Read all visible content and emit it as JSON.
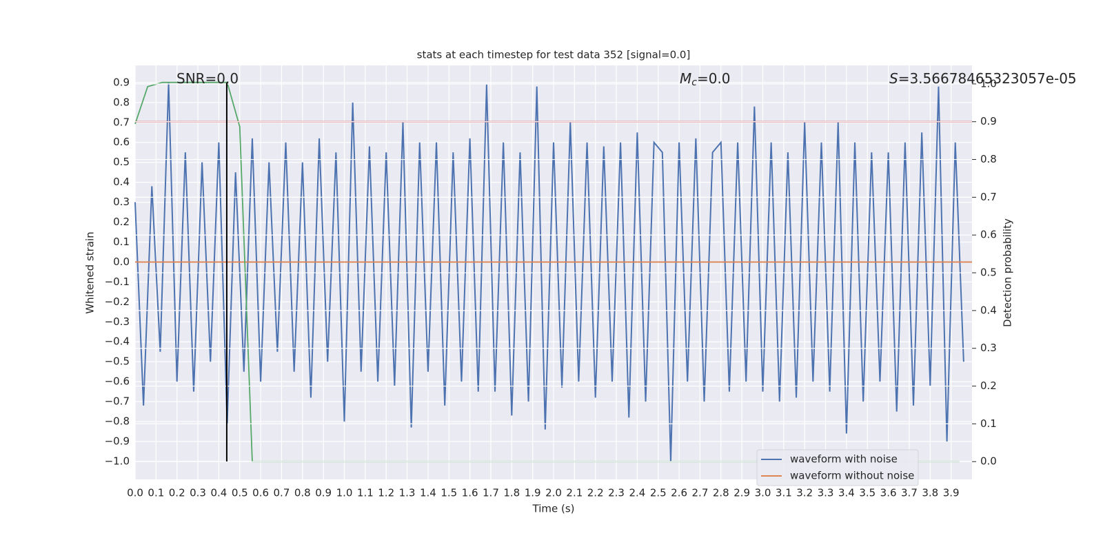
{
  "chart_data": {
    "type": "line",
    "title": "stats at each timestep for test data 352 [signal=0.0]",
    "x_label": "Time (s)",
    "y_label": "Whitened strain",
    "y2_label": "Detection probability",
    "xlim": [
      0,
      4.0
    ],
    "ylim": [
      -1.09,
      0.986
    ],
    "y2lim": [
      -0.047,
      1.049
    ],
    "grid": true,
    "legend": "lower right",
    "xticks": [
      {
        "value": 0,
        "label": "0.0"
      },
      0.1,
      0.2,
      0.3,
      0.4,
      0.5,
      0.6,
      0.7,
      0.8,
      0.9,
      {
        "value": 1,
        "label": "1.0"
      },
      1.1,
      1.2,
      1.3,
      1.4,
      1.5,
      1.6,
      1.7,
      1.8,
      1.9,
      {
        "value": 2,
        "label": "2.0"
      },
      2.1,
      2.2,
      2.3,
      2.4,
      2.5,
      2.6,
      2.7,
      2.8,
      2.9,
      {
        "value": 3,
        "label": "3.0"
      },
      3.1,
      3.2,
      3.3,
      3.4,
      3.5,
      3.6,
      3.7,
      3.8,
      3.9
    ],
    "yticks": [
      {
        "value": -1,
        "label": "−1.0"
      },
      {
        "value": -0.9,
        "label": "−0.9"
      },
      {
        "value": -0.8,
        "label": "−0.8"
      },
      {
        "value": -0.7,
        "label": "−0.7"
      },
      {
        "value": -0.6,
        "label": "−0.6"
      },
      {
        "value": -0.5,
        "label": "−0.5"
      },
      {
        "value": -0.4,
        "label": "−0.4"
      },
      {
        "value": -0.3,
        "label": "−0.3"
      },
      {
        "value": -0.2,
        "label": "−0.2"
      },
      {
        "value": -0.1,
        "label": "−0.1"
      },
      {
        "value": 0,
        "label": "0.0"
      },
      0.1,
      0.2,
      0.3,
      0.4,
      0.5,
      0.6,
      0.7,
      0.8,
      0.9
    ],
    "y2ticks": [
      {
        "value": 0,
        "label": "0.0"
      },
      0.1,
      0.2,
      0.3,
      0.4,
      0.5,
      0.6,
      0.7,
      0.8,
      0.9,
      {
        "value": 1,
        "label": "1.0"
      }
    ],
    "series": [
      {
        "name": "waveform with noise",
        "color": "#4c72b0",
        "x": [
          0,
          0.04,
          0.08,
          0.12,
          0.16,
          0.2,
          0.24,
          0.28,
          0.32,
          0.36,
          0.4,
          0.44,
          0.48,
          0.52,
          0.56,
          0.6,
          0.64,
          0.68,
          0.72,
          0.76,
          0.8,
          0.84,
          0.88,
          0.92,
          0.96,
          1,
          1.04,
          1.08,
          1.12,
          1.16,
          1.2,
          1.24,
          1.28,
          1.32,
          1.36,
          1.4,
          1.44,
          1.48,
          1.52,
          1.56,
          1.6,
          1.64,
          1.68,
          1.72,
          1.76,
          1.8,
          1.84,
          1.88,
          1.92,
          1.96,
          2,
          2.04,
          2.08,
          2.12,
          2.16,
          2.2,
          2.24,
          2.28,
          2.32,
          2.36,
          2.4,
          2.44,
          2.48,
          2.52,
          2.56,
          2.6,
          2.64,
          2.68,
          2.72,
          2.76,
          2.8,
          2.84,
          2.88,
          2.92,
          2.96,
          3,
          3.04,
          3.08,
          3.12,
          3.16,
          3.2,
          3.24,
          3.28,
          3.32,
          3.36,
          3.4,
          3.44,
          3.48,
          3.52,
          3.56,
          3.6,
          3.64,
          3.68,
          3.72,
          3.76,
          3.8,
          3.84,
          3.88,
          3.92,
          3.96
        ],
        "values": [
          0.3,
          -0.72,
          0.38,
          -0.45,
          0.9,
          -0.6,
          0.55,
          -0.65,
          0.5,
          -0.5,
          0.6,
          -0.81,
          0.45,
          -0.55,
          0.62,
          -0.6,
          0.5,
          -0.45,
          0.6,
          -0.55,
          0.5,
          -0.68,
          0.62,
          -0.5,
          0.55,
          -0.8,
          0.8,
          -0.55,
          0.58,
          -0.6,
          0.55,
          -0.62,
          0.7,
          -0.83,
          0.6,
          -0.55,
          0.6,
          -0.72,
          0.55,
          -0.6,
          0.62,
          -0.65,
          0.89,
          -0.65,
          0.6,
          -0.77,
          0.55,
          -0.7,
          0.88,
          -0.84,
          0.6,
          -0.63,
          0.7,
          -0.6,
          0.6,
          -0.68,
          0.58,
          -0.6,
          0.6,
          -0.78,
          0.65,
          -0.7,
          0.6,
          0.55,
          -1.0,
          0.6,
          -0.6,
          0.62,
          -0.7,
          0.55,
          0.6,
          -0.65,
          0.6,
          -0.6,
          0.78,
          -0.65,
          0.6,
          -0.7,
          0.55,
          -0.68,
          0.7,
          -0.6,
          0.6,
          -0.65,
          0.7,
          -0.86,
          0.6,
          -0.7,
          0.55,
          -0.6,
          0.55,
          -0.75,
          0.6,
          -0.72,
          0.65,
          -0.62,
          0.88,
          -0.9,
          0.6,
          -0.5
        ]
      },
      {
        "name": "waveform without noise",
        "color": "#dd8452",
        "x": [
          0,
          4.0
        ],
        "values": [
          0,
          0
        ]
      },
      {
        "color": "#55a868",
        "axis": "y2",
        "x": [
          0,
          0.06,
          0.13,
          0.44,
          0.5,
          0.56,
          3.94
        ],
        "values": [
          0.894,
          0.993,
          1.004,
          1.004,
          0.887,
          0,
          0
        ]
      },
      {
        "color": "#c44e52",
        "axis": "y2",
        "x": [
          0,
          4.0
        ],
        "values": [
          0.9,
          0.9
        ]
      }
    ],
    "vline": {
      "x": 0.438,
      "ymin": -1.0,
      "ymax": 0.9,
      "color": "#000000"
    },
    "annotations": [
      {
        "text": "SNR=0.0"
      },
      {
        "italic": "M",
        "sub": "c",
        "text": "=0.0"
      },
      {
        "italic": "S",
        "text": "=3.56678465323057e-05"
      }
    ]
  }
}
